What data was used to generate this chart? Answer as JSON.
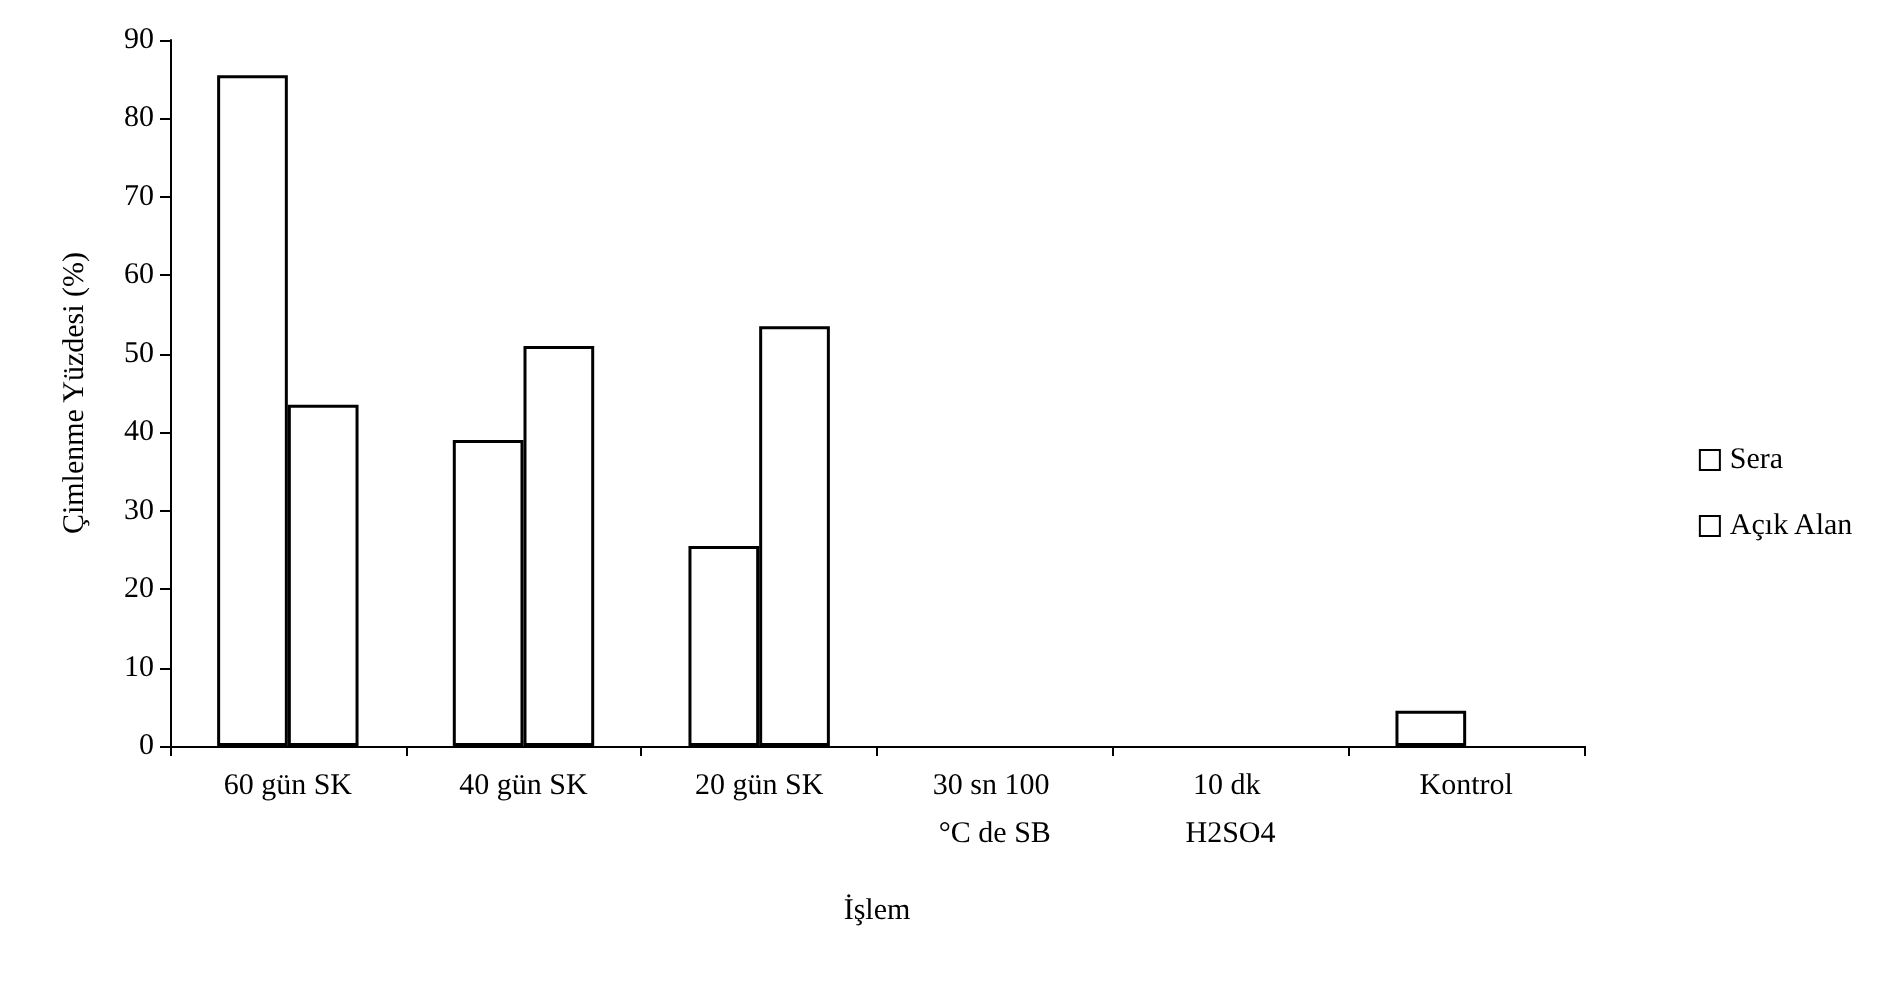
{
  "chart_data": {
    "type": "bar",
    "xlabel": "İşlem",
    "ylabel": "Çimlenme Yüzdesi (%)",
    "categories": [
      "60 gün SK",
      "40 gün SK",
      "20 gün SK",
      "30 sn 100 °C de SB",
      "10 dk H2SO4",
      "Kontrol"
    ],
    "series": [
      {
        "name": "Sera",
        "color": "#ffffff",
        "values": [
          85.5,
          39,
          25.5,
          0,
          0,
          4.5
        ]
      },
      {
        "name": "Açık Alan",
        "color": "#ffffff",
        "values": [
          43.5,
          51,
          53.5,
          0,
          0,
          0
        ]
      }
    ],
    "ylim": [
      0,
      90
    ],
    "yticks": [
      0,
      10,
      20,
      30,
      40,
      50,
      60,
      70,
      80,
      90
    ],
    "grid": false,
    "legend": "right"
  }
}
